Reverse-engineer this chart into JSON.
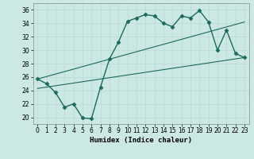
{
  "xlabel": "Humidex (Indice chaleur)",
  "background_color": "#cce8e5",
  "grid_color": "#b8d8d5",
  "line_color": "#1a6b5a",
  "xlim": [
    -0.5,
    23.5
  ],
  "ylim": [
    19,
    37
  ],
  "yticks": [
    20,
    22,
    24,
    26,
    28,
    30,
    32,
    34,
    36
  ],
  "xticks": [
    0,
    1,
    2,
    3,
    4,
    5,
    6,
    7,
    8,
    9,
    10,
    11,
    12,
    13,
    14,
    15,
    16,
    17,
    18,
    19,
    20,
    21,
    22,
    23
  ],
  "line_main_x": [
    0,
    1,
    2,
    3,
    4,
    5,
    6,
    7,
    8,
    9,
    10,
    11,
    12,
    13,
    14,
    15,
    16,
    17,
    18,
    19,
    20,
    21,
    22,
    23
  ],
  "line_main_y": [
    25.7,
    25.0,
    23.7,
    21.5,
    22.0,
    19.9,
    19.8,
    24.5,
    28.7,
    31.2,
    34.3,
    34.8,
    35.3,
    35.1,
    34.0,
    33.5,
    35.1,
    34.8,
    35.9,
    34.2,
    30.0,
    33.0,
    29.5,
    28.9
  ],
  "trend1_x": [
    0,
    23
  ],
  "trend1_y": [
    25.7,
    34.2
  ],
  "trend2_x": [
    0,
    23
  ],
  "trend2_y": [
    24.3,
    28.9
  ]
}
